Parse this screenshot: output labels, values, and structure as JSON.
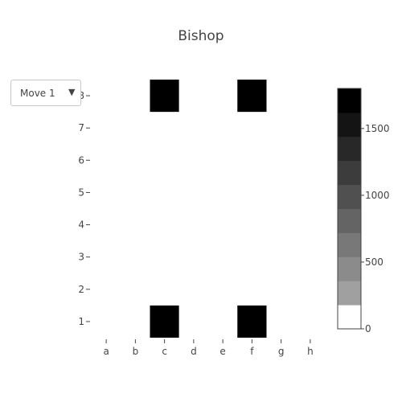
{
  "chart_data": {
    "type": "heatmap",
    "title": "Bishop",
    "x_categories": [
      "a",
      "b",
      "c",
      "d",
      "e",
      "f",
      "g",
      "h"
    ],
    "y_categories": [
      "1",
      "2",
      "3",
      "4",
      "5",
      "6",
      "7",
      "8"
    ],
    "z": [
      [
        0,
        0,
        1800,
        0,
        0,
        1800,
        0,
        0
      ],
      [
        0,
        0,
        0,
        0,
        0,
        0,
        0,
        0
      ],
      [
        0,
        0,
        0,
        0,
        0,
        0,
        0,
        0
      ],
      [
        0,
        0,
        0,
        0,
        0,
        0,
        0,
        0
      ],
      [
        0,
        0,
        0,
        0,
        0,
        0,
        0,
        0
      ],
      [
        0,
        0,
        0,
        0,
        0,
        0,
        0,
        0
      ],
      [
        0,
        0,
        0,
        0,
        0,
        0,
        0,
        0
      ],
      [
        0,
        0,
        1800,
        0,
        0,
        1800,
        0,
        0
      ]
    ],
    "colorscale": {
      "zmin": 0,
      "zmax": 1800,
      "colors": [
        "#ffffff",
        "#a0a0a0",
        "#8b8b8b",
        "#787878",
        "#646464",
        "#505050",
        "#3c3c3c",
        "#282828",
        "#141414",
        "#000000"
      ],
      "tick_values": [
        0,
        500,
        1000,
        1500
      ],
      "tick_labels": [
        "0",
        "500",
        "1000",
        "1500"
      ]
    },
    "grid": false
  },
  "dropdown": {
    "selected": "Move 1",
    "arrow": "▼"
  }
}
